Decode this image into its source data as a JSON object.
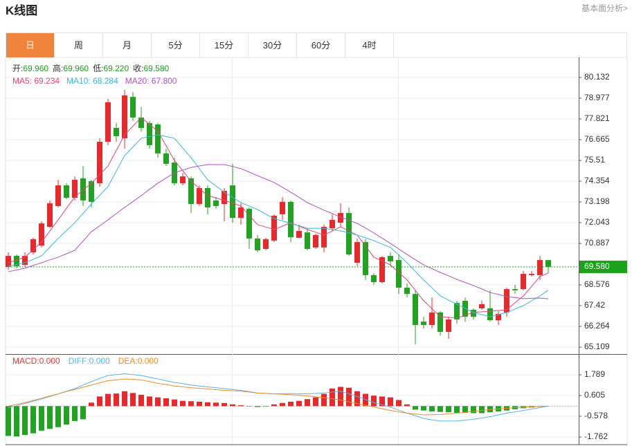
{
  "header": {
    "title": "K线图",
    "link": "基本面分析>"
  },
  "tabs": [
    "日",
    "周",
    "月",
    "5分",
    "15分",
    "30分",
    "60分",
    "4时"
  ],
  "active_tab": "日",
  "chart_data": [
    {
      "type": "candlestick",
      "info": [
        {
          "label": "开:",
          "value": "69.960"
        },
        {
          "label": "高:",
          "value": "69.960"
        },
        {
          "label": "低:",
          "value": "69.220"
        },
        {
          "label": "收:",
          "value": "69.580"
        }
      ],
      "info_value_color": "#1f9e1f",
      "up_color": "#e8282a",
      "down_color": "#21a321",
      "ohlc": [
        [
          69.58,
          70.39,
          69.42,
          70.19
        ],
        [
          70.19,
          70.27,
          69.5,
          69.62
        ],
        [
          69.69,
          70.39,
          69.58,
          70.19
        ],
        [
          70.39,
          71.2,
          70.27,
          71.12
        ],
        [
          70.77,
          72.12,
          70.66,
          72.0
        ],
        [
          71.81,
          73.28,
          71.73,
          73.12
        ],
        [
          72.97,
          74.43,
          72.89,
          74.12
        ],
        [
          74.12,
          74.24,
          73.35,
          73.43
        ],
        [
          73.43,
          74.62,
          73.28,
          74.43
        ],
        [
          74.51,
          75.2,
          72.97,
          73.28
        ],
        [
          74.35,
          74.43,
          72.89,
          73.2
        ],
        [
          74.24,
          76.74,
          74.05,
          76.55
        ],
        [
          76.55,
          78.94,
          76.36,
          78.75
        ],
        [
          77.32,
          77.59,
          76.55,
          76.86
        ],
        [
          76.74,
          79.44,
          76.17,
          79.13
        ],
        [
          79.05,
          79.32,
          77.71,
          77.9
        ],
        [
          77.9,
          78.48,
          77.13,
          77.32
        ],
        [
          77.59,
          77.71,
          76.17,
          76.36
        ],
        [
          77.51,
          77.59,
          75.66,
          75.9
        ],
        [
          75.9,
          76.17,
          75.2,
          75.32
        ],
        [
          75.39,
          75.66,
          74.12,
          74.24
        ],
        [
          74.24,
          74.82,
          74.12,
          74.62
        ],
        [
          74.51,
          74.62,
          72.58,
          73.08
        ],
        [
          73.08,
          74.12,
          72.97,
          73.97
        ],
        [
          73.97,
          74.12,
          72.51,
          72.89
        ],
        [
          73.28,
          73.47,
          72.81,
          72.97
        ],
        [
          73.08,
          73.97,
          72.12,
          73.81
        ],
        [
          74.12,
          75.32,
          72.04,
          72.31
        ],
        [
          72.31,
          73.12,
          71.93,
          72.89
        ],
        [
          72.81,
          72.89,
          70.58,
          71.16
        ],
        [
          71.16,
          71.35,
          70.39,
          70.5
        ],
        [
          70.58,
          71.2,
          70.5,
          71.12
        ],
        [
          71.04,
          72.51,
          70.96,
          72.43
        ],
        [
          72.51,
          73.47,
          72.2,
          73.2
        ],
        [
          73.2,
          73.28,
          70.96,
          71.23
        ],
        [
          71.2,
          71.93,
          71.16,
          71.58
        ],
        [
          71.5,
          71.73,
          70.5,
          70.58
        ],
        [
          70.66,
          71.43,
          70.58,
          71.35
        ],
        [
          70.66,
          71.93,
          70.39,
          71.81
        ],
        [
          71.73,
          72.51,
          71.58,
          72.2
        ],
        [
          72.04,
          73.12,
          71.81,
          72.58
        ],
        [
          72.58,
          72.89,
          70.19,
          70.27
        ],
        [
          69.81,
          71.16,
          69.62,
          70.96
        ],
        [
          70.96,
          71.12,
          68.85,
          69.12
        ],
        [
          69.12,
          69.23,
          68.58,
          68.73
        ],
        [
          68.73,
          70.19,
          68.65,
          70.12
        ],
        [
          70.19,
          70.39,
          69.62,
          69.89
        ],
        [
          69.96,
          70.27,
          68.07,
          68.42
        ],
        [
          68.42,
          68.65,
          67.88,
          68.07
        ],
        [
          68.07,
          68.27,
          65.26,
          66.34
        ],
        [
          66.53,
          66.8,
          66.15,
          66.34
        ],
        [
          66.34,
          67.88,
          66.15,
          67.04
        ],
        [
          67.04,
          67.11,
          65.76,
          65.96
        ],
        [
          65.96,
          66.8,
          65.57,
          66.65
        ],
        [
          67.57,
          67.69,
          66.42,
          66.65
        ],
        [
          67.69,
          67.88,
          66.53,
          66.8
        ],
        [
          67.19,
          67.27,
          66.65,
          66.8
        ],
        [
          67.27,
          67.69,
          67.19,
          67.5
        ],
        [
          67.27,
          68.27,
          66.53,
          66.61
        ],
        [
          66.61,
          67.11,
          66.34,
          66.96
        ],
        [
          67.04,
          68.42,
          66.8,
          68.34
        ],
        [
          68.34,
          68.58,
          68.07,
          68.27
        ],
        [
          68.34,
          69.35,
          68.27,
          69.19
        ],
        [
          69.12,
          69.35,
          69.04,
          69.19
        ],
        [
          69.12,
          70.19,
          68.85,
          69.96
        ],
        [
          69.96,
          69.96,
          69.22,
          69.58
        ]
      ],
      "series": [
        {
          "name": "MA5: 69.234",
          "color": "#e5447a",
          "values": [
            69.81,
            69.97,
            70.12,
            70.54,
            70.96,
            71.58,
            72.2,
            72.84,
            73.47,
            73.86,
            74.24,
            74.72,
            75.2,
            76.07,
            76.94,
            77.42,
            77.9,
            77.52,
            77.13,
            76.32,
            75.51,
            74.93,
            74.35,
            73.95,
            73.55,
            73.42,
            73.28,
            73.13,
            72.97,
            72.45,
            71.93,
            71.8,
            71.66,
            71.85,
            72.04,
            71.85,
            71.66,
            71.51,
            71.35,
            71.58,
            71.81,
            71.58,
            71.35,
            70.74,
            70.12,
            69.91,
            69.69,
            69.27,
            68.85,
            68.27,
            67.69,
            67.25,
            66.8,
            66.77,
            66.73,
            66.89,
            67.04,
            67.08,
            67.11,
            67.15,
            67.19,
            67.58,
            67.96,
            68.5,
            69.04,
            69.234
          ]
        },
        {
          "name": "MA10: 68.284",
          "color": "#3ab7d8",
          "values": [
            69.62,
            69.72,
            69.81,
            70.0,
            70.19,
            70.68,
            71.16,
            71.6,
            72.04,
            72.56,
            73.08,
            73.57,
            74.05,
            74.92,
            75.78,
            76.26,
            76.74,
            76.84,
            76.94,
            76.84,
            76.74,
            76.2,
            75.66,
            75.05,
            74.43,
            74.09,
            73.74,
            73.45,
            73.16,
            72.97,
            72.77,
            72.52,
            72.27,
            72.14,
            72.0,
            71.87,
            71.73,
            71.73,
            71.73,
            71.66,
            71.58,
            71.47,
            71.35,
            71.2,
            71.04,
            70.85,
            70.66,
            70.24,
            69.81,
            69.33,
            68.85,
            68.41,
            67.96,
            67.73,
            67.5,
            67.27,
            67.04,
            66.92,
            66.8,
            66.92,
            67.04,
            67.23,
            67.42,
            67.69,
            67.96,
            68.284
          ]
        },
        {
          "name": "MA20: 67.800",
          "color": "#b44fc2",
          "values": [
            69.31,
            69.41,
            69.5,
            69.66,
            69.81,
            69.97,
            70.12,
            70.31,
            70.5,
            71.02,
            71.54,
            71.87,
            72.2,
            72.55,
            72.89,
            73.22,
            73.55,
            73.9,
            74.24,
            74.53,
            74.82,
            74.97,
            75.12,
            75.2,
            75.28,
            75.28,
            75.28,
            75.17,
            75.05,
            74.86,
            74.66,
            74.47,
            74.28,
            74.01,
            73.74,
            73.45,
            73.16,
            72.95,
            72.74,
            72.55,
            72.35,
            72.18,
            72.0,
            71.74,
            71.47,
            71.18,
            70.89,
            70.58,
            70.27,
            69.98,
            69.69,
            69.48,
            69.27,
            69.08,
            68.88,
            68.71,
            68.54,
            68.35,
            68.15,
            68.04,
            67.92,
            67.87,
            67.81,
            67.83,
            67.84,
            67.8
          ]
        }
      ],
      "last_price": {
        "value": 69.58,
        "label": "69.580",
        "color": "#1aa31a"
      },
      "ylim": [
        64.724,
        81.211
      ],
      "yticks": [
        80.132,
        78.977,
        77.821,
        76.665,
        75.51,
        74.354,
        73.198,
        72.043,
        70.887,
        68.576,
        67.42,
        66.264,
        65.109
      ],
      "grid": true
    },
    {
      "type": "macd",
      "series": [
        {
          "name": "MACD:0.000",
          "color": "#e03a3a",
          "up_color": "#e8282a",
          "down_color": "#21a321",
          "values": [
            -1.7,
            -1.73,
            -1.65,
            -1.55,
            -1.4,
            -1.3,
            -1.2,
            -1.05,
            -0.85,
            -0.75,
            0.2,
            0.55,
            0.7,
            0.72,
            0.85,
            0.75,
            0.65,
            0.55,
            0.5,
            0.45,
            0.38,
            0.3,
            0.28,
            0.25,
            0.22,
            0.2,
            0.18,
            0.1,
            0.05,
            -0.02,
            -0.05,
            -0.03,
            0.1,
            0.18,
            0.25,
            0.3,
            0.4,
            0.5,
            0.7,
            1.0,
            1.1,
            1.05,
            0.85,
            0.7,
            0.6,
            0.55,
            0.5,
            0.35,
            0.1,
            -0.2,
            -0.25,
            -0.3,
            -0.33,
            -0.35,
            -0.38,
            -0.38,
            -0.4,
            -0.4,
            -0.35,
            -0.3,
            -0.25,
            -0.18,
            -0.12,
            -0.08,
            -0.03,
            0.0
          ]
        },
        {
          "name": "DIFF:0.000",
          "color": "#5bb3e6",
          "values": [
            -0.1,
            0.03,
            0.15,
            0.28,
            0.4,
            0.55,
            0.7,
            0.85,
            1.0,
            1.2,
            1.4,
            1.58,
            1.75,
            1.8,
            1.85,
            1.8,
            1.75,
            1.65,
            1.55,
            1.45,
            1.35,
            1.28,
            1.2,
            1.15,
            1.1,
            1.05,
            1.0,
            0.95,
            0.9,
            0.83,
            0.75,
            0.73,
            0.7,
            0.71,
            0.72,
            0.71,
            0.7,
            0.73,
            0.75,
            0.8,
            0.85,
            0.7,
            0.55,
            0.38,
            0.2,
            0.08,
            -0.05,
            -0.23,
            -0.4,
            -0.55,
            -0.7,
            -0.78,
            -0.85,
            -0.85,
            -0.85,
            -0.8,
            -0.75,
            -0.68,
            -0.6,
            -0.5,
            -0.4,
            -0.33,
            -0.25,
            -0.17,
            -0.08,
            0.0
          ]
        },
        {
          "name": "DEA:0.000",
          "color": "#f08c28",
          "values": [
            0.0,
            0.1,
            0.2,
            0.33,
            0.45,
            0.58,
            0.7,
            0.83,
            0.95,
            1.08,
            1.2,
            1.33,
            1.45,
            1.5,
            1.55,
            1.53,
            1.5,
            1.4,
            1.3,
            1.23,
            1.15,
            1.1,
            1.05,
            1.02,
            0.98,
            0.94,
            0.9,
            0.88,
            0.85,
            0.8,
            0.75,
            0.73,
            0.7,
            0.68,
            0.65,
            0.62,
            0.58,
            0.53,
            0.48,
            0.42,
            0.35,
            0.25,
            0.15,
            0.05,
            -0.05,
            -0.15,
            -0.25,
            -0.33,
            -0.4,
            -0.45,
            -0.5,
            -0.49,
            -0.48,
            -0.44,
            -0.4,
            -0.35,
            -0.3,
            -0.25,
            -0.2,
            -0.16,
            -0.12,
            -0.09,
            -0.06,
            -0.04,
            -0.02,
            0.0
          ]
        }
      ],
      "ylim": [
        -2.196,
        2.933
      ],
      "yticks": [
        1.789,
        0.605,
        -0.578,
        -1.762
      ],
      "grid": true
    }
  ]
}
